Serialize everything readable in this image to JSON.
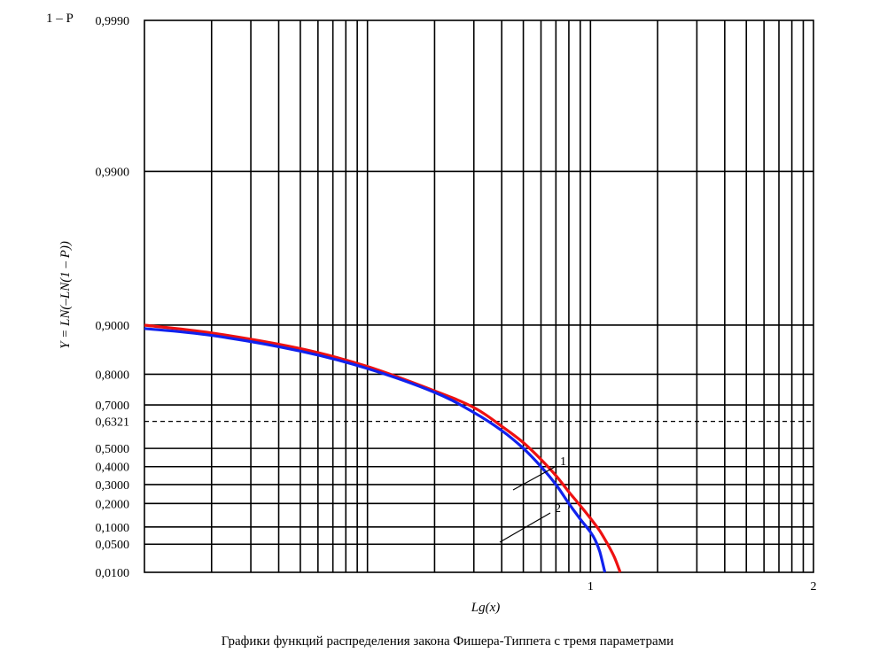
{
  "chart_data": {
    "type": "line",
    "title": "",
    "caption": "Графики функций распределения закона Фишера-Типпета с тремя параметрами",
    "xlabel": "Lg(x)",
    "ylabel": "Y = LN(–LN(1 – P))",
    "corner_label": "1 – P",
    "x_axis": {
      "scale": "log10",
      "xlim": [
        0.1,
        100
      ],
      "tick_labels": [
        {
          "value": 10,
          "text": "1"
        },
        {
          "value": 100,
          "text": "2"
        }
      ]
    },
    "y_axis": {
      "scale": "gumbel",
      "ylim": [
        0.01,
        0.999
      ],
      "tick_labels": [
        "0,9990",
        "0,9900",
        "0,9000",
        "0,8000",
        "0,7000",
        "0,6321",
        "0,5000",
        "0,4000",
        "0,3000",
        "0,2000",
        "0,1000",
        "0,0500",
        "0,0100"
      ],
      "tick_values": [
        0.999,
        0.99,
        0.9,
        0.8,
        0.7,
        0.6321,
        0.5,
        0.4,
        0.3,
        0.2,
        0.1,
        0.05,
        0.01
      ],
      "dashed_reference": 0.6321
    },
    "grid": true,
    "series": [
      {
        "callout": "1",
        "color": "#ee1111",
        "x": [
          0.1,
          0.2,
          0.5,
          1.0,
          2.0,
          3.0,
          4.0,
          5.0,
          6.0,
          7.0,
          8.0,
          9.0,
          10.0,
          11.0,
          12.0,
          12.8,
          13.6
        ],
        "y": [
          0.9,
          0.888,
          0.86,
          0.82,
          0.75,
          0.69,
          0.61,
          0.53,
          0.44,
          0.35,
          0.26,
          0.19,
          0.133,
          0.087,
          0.048,
          0.026,
          0.01
        ]
      },
      {
        "callout": "2",
        "color": "#1122ee",
        "x": [
          0.1,
          0.2,
          0.5,
          1.0,
          2.0,
          3.0,
          4.0,
          5.0,
          6.0,
          7.0,
          8.0,
          9.0,
          10.0,
          10.5,
          11.0,
          11.6
        ],
        "y": [
          0.895,
          0.884,
          0.855,
          0.815,
          0.745,
          0.67,
          0.59,
          0.5,
          0.4,
          0.3,
          0.2,
          0.13,
          0.083,
          0.06,
          0.035,
          0.01
        ]
      }
    ]
  }
}
